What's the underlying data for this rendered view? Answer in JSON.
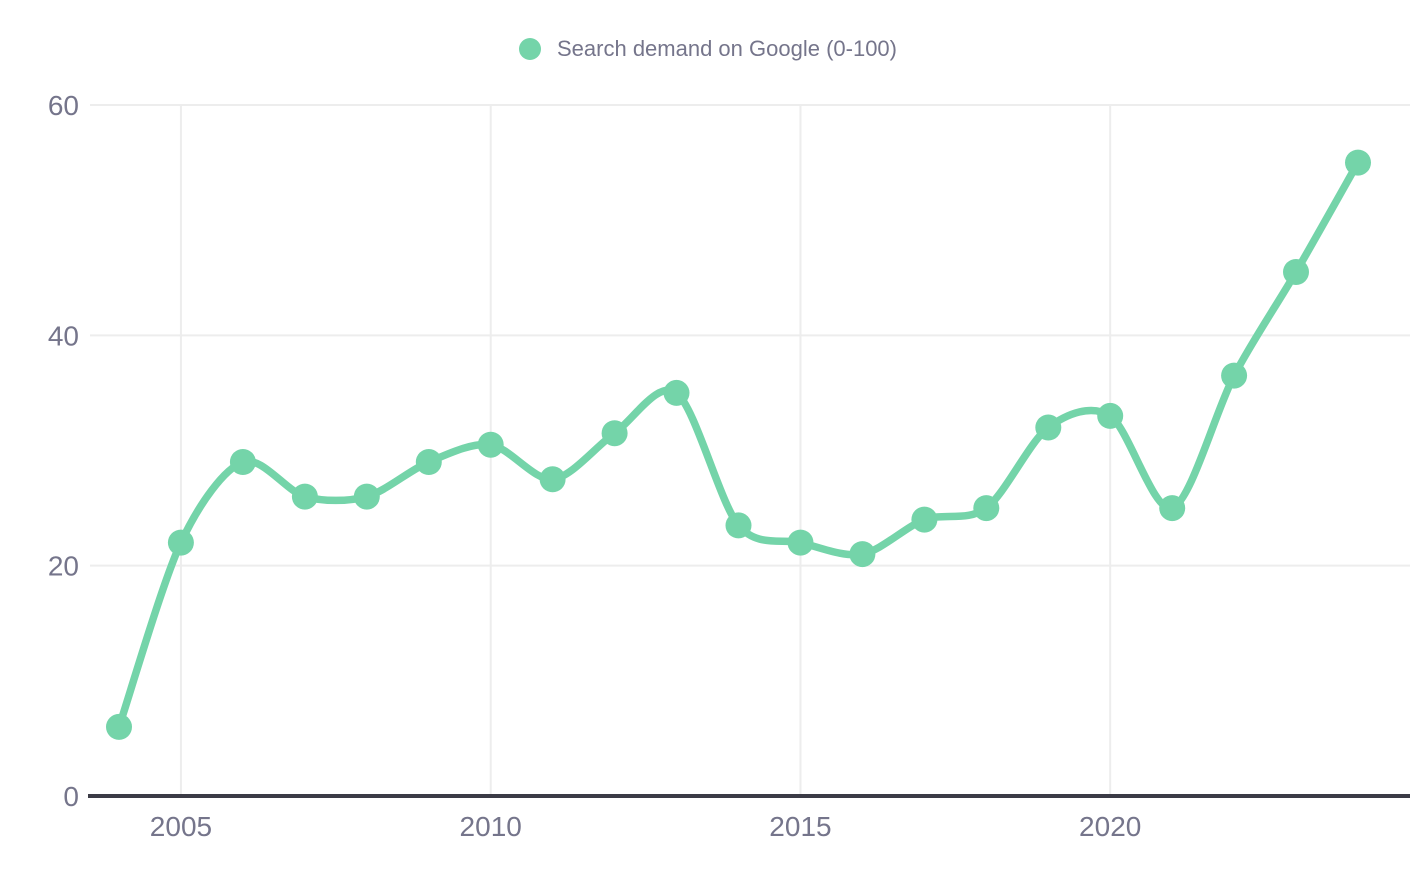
{
  "legend": {
    "label": "Search demand on Google (0-100)"
  },
  "colors": {
    "series": "#74d4a9",
    "axis_line": "#3b3b46",
    "grid_line": "#ededed",
    "tick_label": "#75758b",
    "legend_text": "#75758b",
    "background": "#ffffff"
  },
  "chart_data": {
    "type": "line",
    "title": "",
    "x": [
      2004,
      2005,
      2006,
      2007,
      2008,
      2009,
      2010,
      2011,
      2012,
      2013,
      2014,
      2015,
      2016,
      2017,
      2018,
      2019,
      2020,
      2021,
      2022,
      2023,
      2024
    ],
    "series": [
      {
        "name": "Search demand on Google (0-100)",
        "values": [
          6,
          22,
          29,
          26,
          26,
          29,
          30.5,
          27.5,
          31.5,
          35,
          23.5,
          22,
          21,
          24,
          25,
          32,
          33,
          25,
          36.5,
          45.5,
          55
        ]
      }
    ],
    "x_tick_years": [
      2005,
      2010,
      2015,
      2020
    ],
    "x_tick_labels": [
      "2005",
      "2010",
      "2015",
      "2020"
    ],
    "y_ticks": [
      0,
      20,
      40,
      60
    ],
    "y_tick_labels": [
      "0",
      "20",
      "40",
      "60"
    ],
    "ylim": [
      0,
      60
    ],
    "xlabel": "",
    "ylabel": "",
    "grid": true,
    "legend_position": "top-center",
    "marker": "circle",
    "line_smoothing": true
  }
}
